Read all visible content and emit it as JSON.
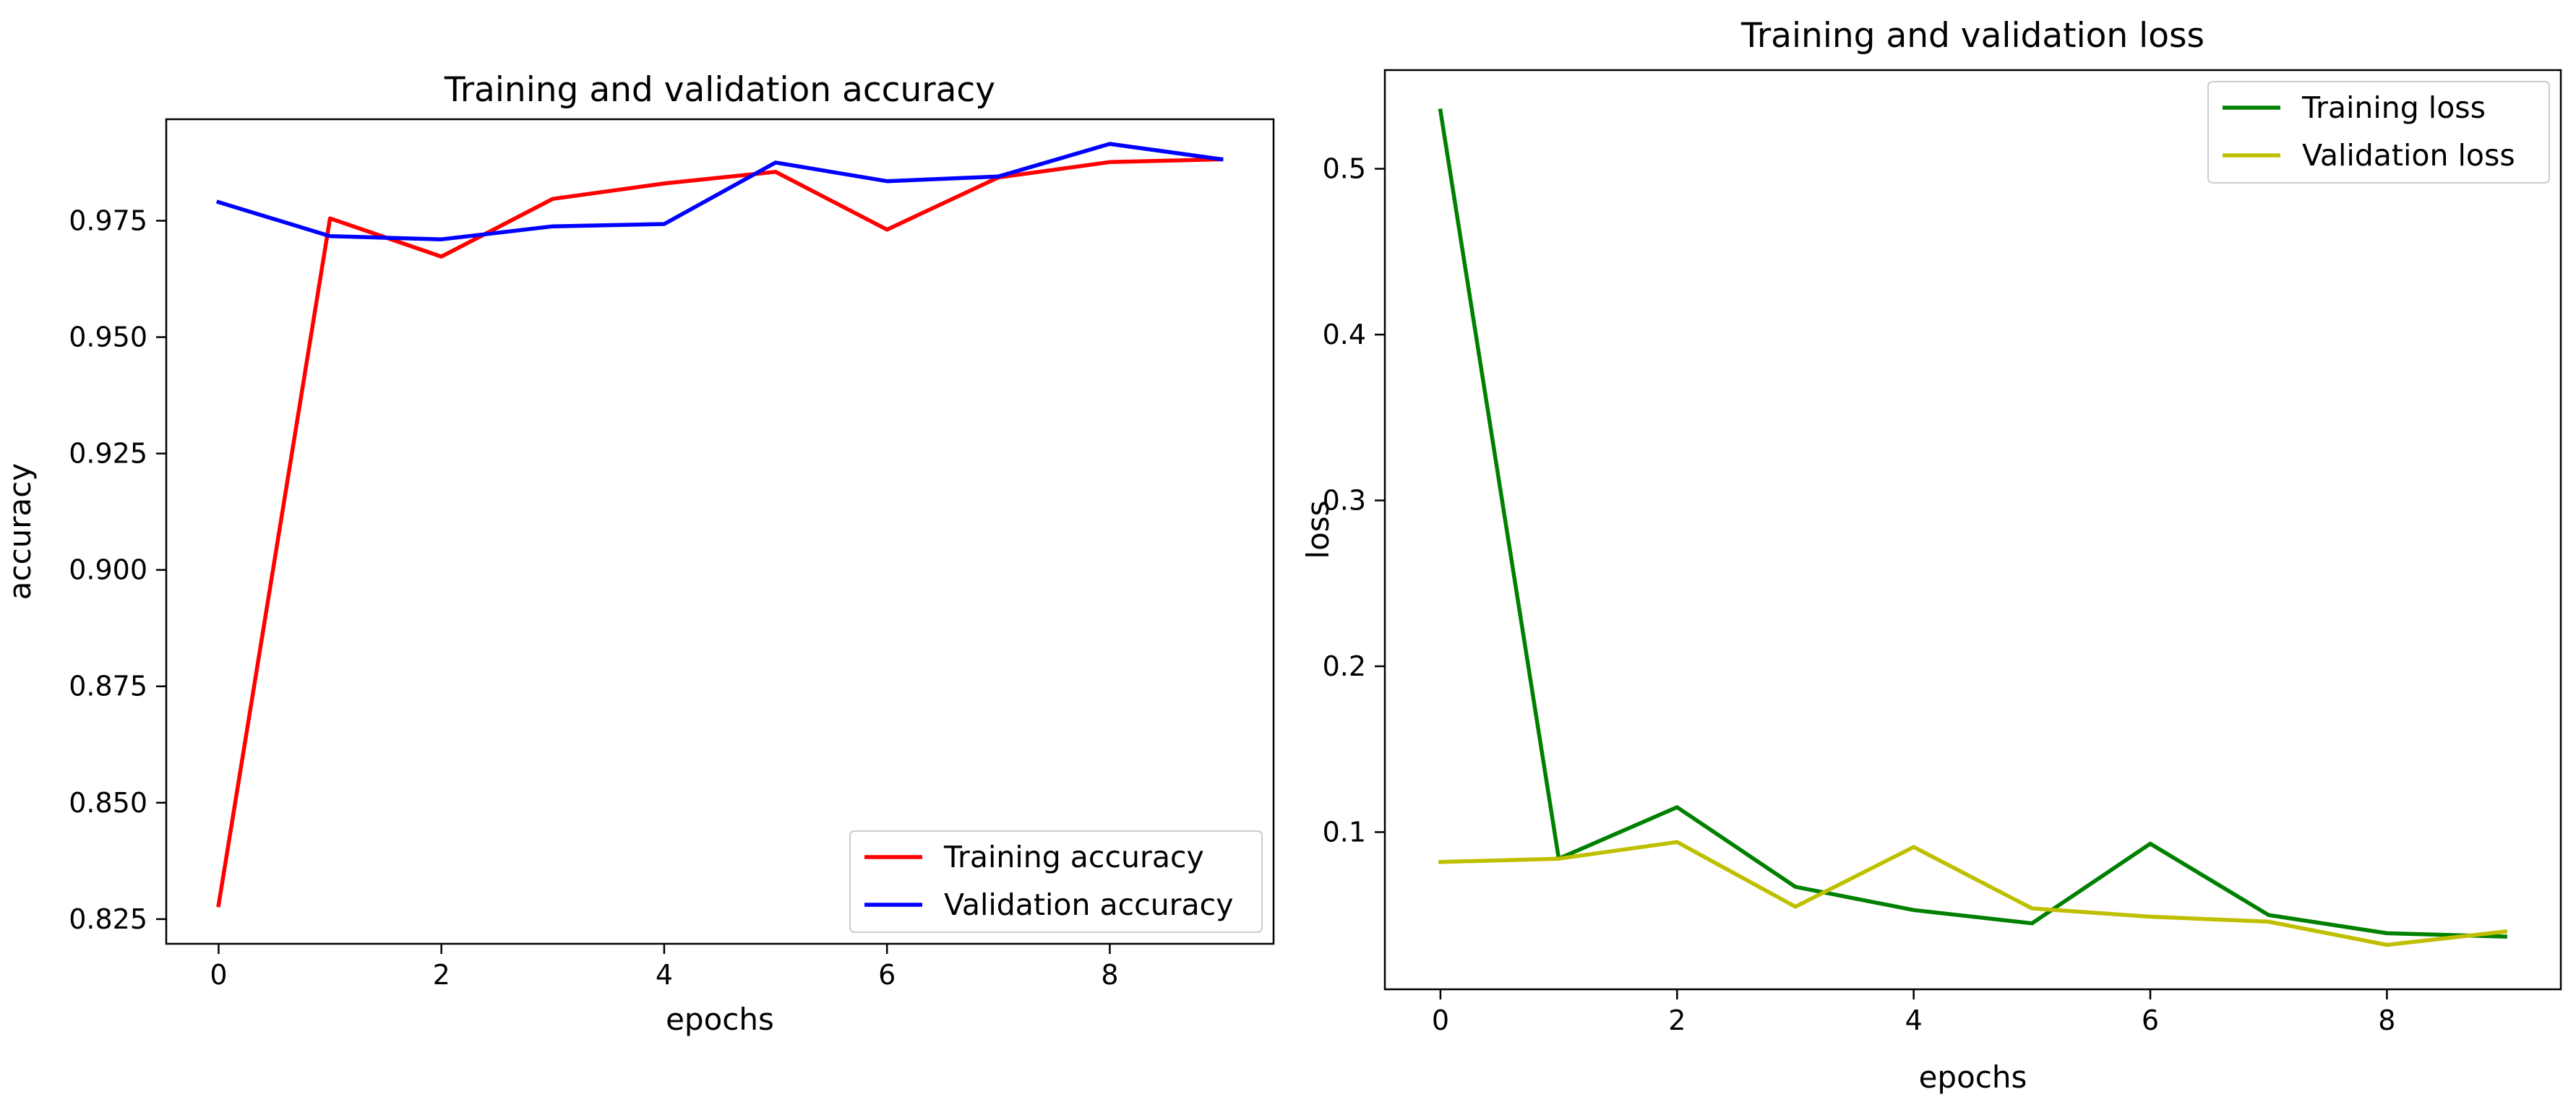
{
  "chart_data": [
    {
      "id": "accuracy",
      "type": "line",
      "title": "Training and validation accuracy",
      "xlabel": "epochs",
      "ylabel": "accuracy",
      "xlim": [
        -0.47,
        9.47
      ],
      "ylim": [
        0.8197,
        0.9968
      ],
      "x_ticks": [
        0,
        2,
        4,
        6,
        8
      ],
      "y_ticks": [
        0.825,
        0.85,
        0.875,
        0.9,
        0.925,
        0.95,
        0.975
      ],
      "y_tick_labels": [
        "0.825",
        "0.850",
        "0.875",
        "0.900",
        "0.925",
        "0.950",
        "0.975"
      ],
      "grid": false,
      "legend_position": "lower-right",
      "x": [
        0,
        1,
        2,
        3,
        4,
        5,
        6,
        7,
        8,
        9
      ],
      "series": [
        {
          "name": "Training accuracy",
          "color": "#ff0000",
          "values": [
            0.828,
            0.9755,
            0.9673,
            0.9797,
            0.983,
            0.9855,
            0.9731,
            0.9843,
            0.9876,
            0.9882
          ]
        },
        {
          "name": "Validation accuracy",
          "color": "#0000ff",
          "values": [
            0.979,
            0.9717,
            0.971,
            0.9738,
            0.9743,
            0.9875,
            0.9835,
            0.9845,
            0.9915,
            0.9882
          ]
        }
      ]
    },
    {
      "id": "loss",
      "type": "line",
      "title": "Training and validation loss",
      "xlabel": "epochs",
      "ylabel": "loss",
      "xlim": [
        -0.47,
        9.47
      ],
      "ylim": [
        0.0052,
        0.5595
      ],
      "x_ticks": [
        0,
        2,
        4,
        6,
        8
      ],
      "y_ticks": [
        0.1,
        0.2,
        0.3,
        0.4,
        0.5
      ],
      "y_tick_labels": [
        "0.1",
        "0.2",
        "0.3",
        "0.4",
        "0.5"
      ],
      "grid": false,
      "legend_position": "upper-right",
      "x": [
        0,
        1,
        2,
        3,
        4,
        5,
        6,
        7,
        8,
        9
      ],
      "series": [
        {
          "name": "Training loss",
          "color": "#008000",
          "values": [
            0.535,
            0.084,
            0.115,
            0.067,
            0.053,
            0.045,
            0.093,
            0.05,
            0.039,
            0.037
          ]
        },
        {
          "name": "Validation loss",
          "color": "#bfbf00",
          "values": [
            0.082,
            0.084,
            0.094,
            0.055,
            0.091,
            0.054,
            0.049,
            0.046,
            0.032,
            0.04
          ]
        }
      ]
    }
  ]
}
